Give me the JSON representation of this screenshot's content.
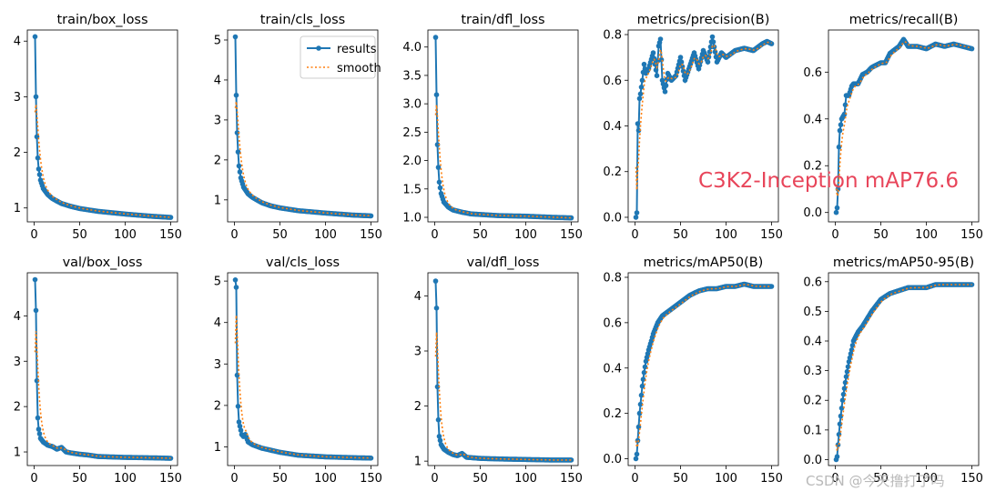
{
  "overlay_text": "C3K2-Inception mAP76.6",
  "watermark": "CSDN @今天撸打了吗",
  "colors": {
    "results": "#1f77b4",
    "smooth": "#ff7f0e",
    "overlay": "#e8455a"
  },
  "legend": {
    "results": "results",
    "smooth": "smooth",
    "placement": "top-right",
    "subplot": 1
  },
  "chart_data": [
    {
      "type": "line",
      "title": "train/box_loss",
      "xticks": [
        0,
        50,
        100,
        150
      ],
      "yticks": [
        1,
        2,
        3,
        4
      ],
      "ylim": [
        0.75,
        4.2
      ],
      "anchors": [
        [
          1,
          4.08
        ],
        [
          2,
          3.0
        ],
        [
          3,
          2.28
        ],
        [
          4,
          1.9
        ],
        [
          5,
          1.7
        ],
        [
          7,
          1.5
        ],
        [
          10,
          1.35
        ],
        [
          15,
          1.24
        ],
        [
          20,
          1.17
        ],
        [
          30,
          1.08
        ],
        [
          40,
          1.03
        ],
        [
          50,
          0.99
        ],
        [
          70,
          0.94
        ],
        [
          100,
          0.89
        ],
        [
          130,
          0.85
        ],
        [
          150,
          0.83
        ]
      ],
      "smooth_start": 2.72
    },
    {
      "type": "line",
      "title": "train/cls_loss",
      "xticks": [
        0,
        50,
        100,
        150
      ],
      "yticks": [
        1,
        2,
        3,
        4,
        5
      ],
      "ylim": [
        0.45,
        5.25
      ],
      "anchors": [
        [
          1,
          5.08
        ],
        [
          2,
          3.62
        ],
        [
          3,
          2.68
        ],
        [
          4,
          2.2
        ],
        [
          5,
          1.85
        ],
        [
          7,
          1.55
        ],
        [
          10,
          1.32
        ],
        [
          15,
          1.15
        ],
        [
          20,
          1.06
        ],
        [
          30,
          0.93
        ],
        [
          40,
          0.85
        ],
        [
          50,
          0.8
        ],
        [
          70,
          0.73
        ],
        [
          100,
          0.67
        ],
        [
          130,
          0.62
        ],
        [
          150,
          0.6
        ]
      ],
      "smooth_start": 3.3
    },
    {
      "type": "line",
      "title": "train/dfl_loss",
      "xticks": [
        0,
        50,
        100,
        150
      ],
      "yticks": [
        1.0,
        1.5,
        2.0,
        2.5,
        3.0,
        3.5,
        4.0
      ],
      "ylim": [
        0.92,
        4.3
      ],
      "anchors": [
        [
          1,
          4.17
        ],
        [
          2,
          3.16
        ],
        [
          3,
          2.28
        ],
        [
          4,
          1.88
        ],
        [
          5,
          1.62
        ],
        [
          7,
          1.42
        ],
        [
          10,
          1.27
        ],
        [
          15,
          1.18
        ],
        [
          20,
          1.13
        ],
        [
          30,
          1.09
        ],
        [
          40,
          1.06
        ],
        [
          50,
          1.05
        ],
        [
          70,
          1.03
        ],
        [
          100,
          1.02
        ],
        [
          130,
          1.0
        ],
        [
          150,
          0.99
        ]
      ],
      "smooth_start": 2.8
    },
    {
      "type": "line",
      "title": "metrics/precision(B)",
      "xticks": [
        0,
        50,
        100,
        150
      ],
      "yticks": [
        0.0,
        0.2,
        0.4,
        0.6,
        0.8
      ],
      "ylim": [
        -0.02,
        0.82
      ],
      "anchors": [
        [
          1,
          0.0
        ],
        [
          2,
          0.02
        ],
        [
          3,
          0.41
        ],
        [
          4,
          0.38
        ],
        [
          5,
          0.52
        ],
        [
          6,
          0.54
        ],
        [
          8,
          0.6
        ],
        [
          10,
          0.67
        ],
        [
          12,
          0.63
        ],
        [
          15,
          0.65
        ],
        [
          20,
          0.72
        ],
        [
          24,
          0.62
        ],
        [
          26,
          0.75
        ],
        [
          28,
          0.78
        ],
        [
          30,
          0.6
        ],
        [
          33,
          0.55
        ],
        [
          36,
          0.63
        ],
        [
          40,
          0.6
        ],
        [
          45,
          0.62
        ],
        [
          50,
          0.7
        ],
        [
          55,
          0.6
        ],
        [
          60,
          0.66
        ],
        [
          65,
          0.72
        ],
        [
          70,
          0.65
        ],
        [
          75,
          0.73
        ],
        [
          80,
          0.68
        ],
        [
          85,
          0.79
        ],
        [
          90,
          0.68
        ],
        [
          95,
          0.72
        ],
        [
          100,
          0.7
        ],
        [
          110,
          0.73
        ],
        [
          120,
          0.74
        ],
        [
          130,
          0.73
        ],
        [
          140,
          0.76
        ],
        [
          145,
          0.77
        ],
        [
          150,
          0.76
        ]
      ],
      "smooth_start": 0.22
    },
    {
      "type": "line",
      "title": "metrics/recall(B)",
      "xticks": [
        0,
        50,
        100,
        150
      ],
      "yticks": [
        0.0,
        0.2,
        0.4,
        0.6
      ],
      "ylim": [
        -0.04,
        0.78
      ],
      "anchors": [
        [
          1,
          0.0
        ],
        [
          2,
          0.02
        ],
        [
          3,
          0.1
        ],
        [
          4,
          0.28
        ],
        [
          5,
          0.35
        ],
        [
          7,
          0.4
        ],
        [
          10,
          0.42
        ],
        [
          12,
          0.5
        ],
        [
          15,
          0.5
        ],
        [
          18,
          0.54
        ],
        [
          20,
          0.55
        ],
        [
          25,
          0.55
        ],
        [
          30,
          0.59
        ],
        [
          35,
          0.6
        ],
        [
          40,
          0.62
        ],
        [
          45,
          0.63
        ],
        [
          50,
          0.64
        ],
        [
          55,
          0.64
        ],
        [
          60,
          0.68
        ],
        [
          70,
          0.71
        ],
        [
          75,
          0.74
        ],
        [
          80,
          0.71
        ],
        [
          90,
          0.71
        ],
        [
          100,
          0.7
        ],
        [
          110,
          0.72
        ],
        [
          120,
          0.71
        ],
        [
          130,
          0.72
        ],
        [
          140,
          0.71
        ],
        [
          150,
          0.7
        ]
      ],
      "smooth_start": 0.12
    },
    {
      "type": "line",
      "title": "val/box_loss",
      "xticks": [
        0,
        50,
        100,
        150
      ],
      "yticks": [
        1,
        2,
        3,
        4
      ],
      "ylim": [
        0.7,
        4.95
      ],
      "anchors": [
        [
          1,
          4.8
        ],
        [
          2,
          4.12
        ],
        [
          3,
          2.57
        ],
        [
          4,
          1.75
        ],
        [
          5,
          1.5
        ],
        [
          7,
          1.3
        ],
        [
          10,
          1.22
        ],
        [
          15,
          1.15
        ],
        [
          20,
          1.12
        ],
        [
          25,
          1.06
        ],
        [
          30,
          1.1
        ],
        [
          35,
          1.0
        ],
        [
          40,
          0.98
        ],
        [
          50,
          0.95
        ],
        [
          60,
          0.93
        ],
        [
          70,
          0.9
        ],
        [
          100,
          0.88
        ],
        [
          130,
          0.87
        ],
        [
          150,
          0.86
        ]
      ],
      "smooth_start": 3.2
    },
    {
      "type": "line",
      "title": "val/cls_loss",
      "xticks": [
        0,
        50,
        100,
        150
      ],
      "yticks": [
        1,
        2,
        3,
        4,
        5
      ],
      "ylim": [
        0.55,
        5.2
      ],
      "anchors": [
        [
          1,
          5.03
        ],
        [
          2,
          4.85
        ],
        [
          3,
          2.73
        ],
        [
          4,
          1.98
        ],
        [
          5,
          1.6
        ],
        [
          7,
          1.4
        ],
        [
          8,
          1.3
        ],
        [
          10,
          1.25
        ],
        [
          12,
          1.3
        ],
        [
          15,
          1.12
        ],
        [
          20,
          1.05
        ],
        [
          30,
          0.97
        ],
        [
          40,
          0.92
        ],
        [
          50,
          0.87
        ],
        [
          70,
          0.8
        ],
        [
          100,
          0.76
        ],
        [
          130,
          0.74
        ],
        [
          150,
          0.73
        ]
      ],
      "smooth_start": 3.5
    },
    {
      "type": "line",
      "title": "val/dfl_loss",
      "xticks": [
        0,
        50,
        100,
        150
      ],
      "yticks": [
        1,
        2,
        3,
        4
      ],
      "ylim": [
        0.92,
        4.42
      ],
      "anchors": [
        [
          1,
          4.27
        ],
        [
          2,
          3.78
        ],
        [
          3,
          2.35
        ],
        [
          4,
          1.75
        ],
        [
          5,
          1.45
        ],
        [
          7,
          1.3
        ],
        [
          10,
          1.22
        ],
        [
          15,
          1.16
        ],
        [
          20,
          1.12
        ],
        [
          25,
          1.1
        ],
        [
          30,
          1.14
        ],
        [
          35,
          1.07
        ],
        [
          50,
          1.05
        ],
        [
          70,
          1.04
        ],
        [
          100,
          1.03
        ],
        [
          130,
          1.02
        ],
        [
          150,
          1.02
        ]
      ],
      "smooth_start": 2.9
    },
    {
      "type": "line",
      "title": "metrics/mAP50(B)",
      "xticks": [
        0,
        50,
        100,
        150
      ],
      "yticks": [
        0.0,
        0.2,
        0.4,
        0.6,
        0.8
      ],
      "ylim": [
        -0.03,
        0.82
      ],
      "anchors": [
        [
          1,
          0.0
        ],
        [
          2,
          0.02
        ],
        [
          3,
          0.08
        ],
        [
          5,
          0.2
        ],
        [
          8,
          0.32
        ],
        [
          10,
          0.38
        ],
        [
          12,
          0.43
        ],
        [
          15,
          0.48
        ],
        [
          18,
          0.52
        ],
        [
          20,
          0.55
        ],
        [
          25,
          0.6
        ],
        [
          30,
          0.63
        ],
        [
          40,
          0.66
        ],
        [
          50,
          0.69
        ],
        [
          60,
          0.72
        ],
        [
          70,
          0.74
        ],
        [
          80,
          0.75
        ],
        [
          90,
          0.75
        ],
        [
          100,
          0.76
        ],
        [
          110,
          0.76
        ],
        [
          120,
          0.77
        ],
        [
          130,
          0.76
        ],
        [
          140,
          0.76
        ],
        [
          150,
          0.76
        ]
      ],
      "smooth_start": 0.08
    },
    {
      "type": "line",
      "title": "metrics/mAP50-95(B)",
      "xticks": [
        0,
        50,
        100,
        150
      ],
      "yticks": [
        0.0,
        0.1,
        0.2,
        0.3,
        0.4,
        0.5,
        0.6
      ],
      "ylim": [
        -0.02,
        0.63
      ],
      "anchors": [
        [
          1,
          0.0
        ],
        [
          2,
          0.01
        ],
        [
          3,
          0.05
        ],
        [
          5,
          0.12
        ],
        [
          8,
          0.2
        ],
        [
          10,
          0.24
        ],
        [
          12,
          0.28
        ],
        [
          15,
          0.33
        ],
        [
          18,
          0.37
        ],
        [
          20,
          0.4
        ],
        [
          25,
          0.43
        ],
        [
          30,
          0.45
        ],
        [
          40,
          0.5
        ],
        [
          50,
          0.54
        ],
        [
          60,
          0.56
        ],
        [
          70,
          0.57
        ],
        [
          80,
          0.58
        ],
        [
          90,
          0.58
        ],
        [
          100,
          0.58
        ],
        [
          110,
          0.59
        ],
        [
          120,
          0.59
        ],
        [
          130,
          0.59
        ],
        [
          140,
          0.59
        ],
        [
          150,
          0.59
        ]
      ],
      "smooth_start": 0.05
    }
  ]
}
